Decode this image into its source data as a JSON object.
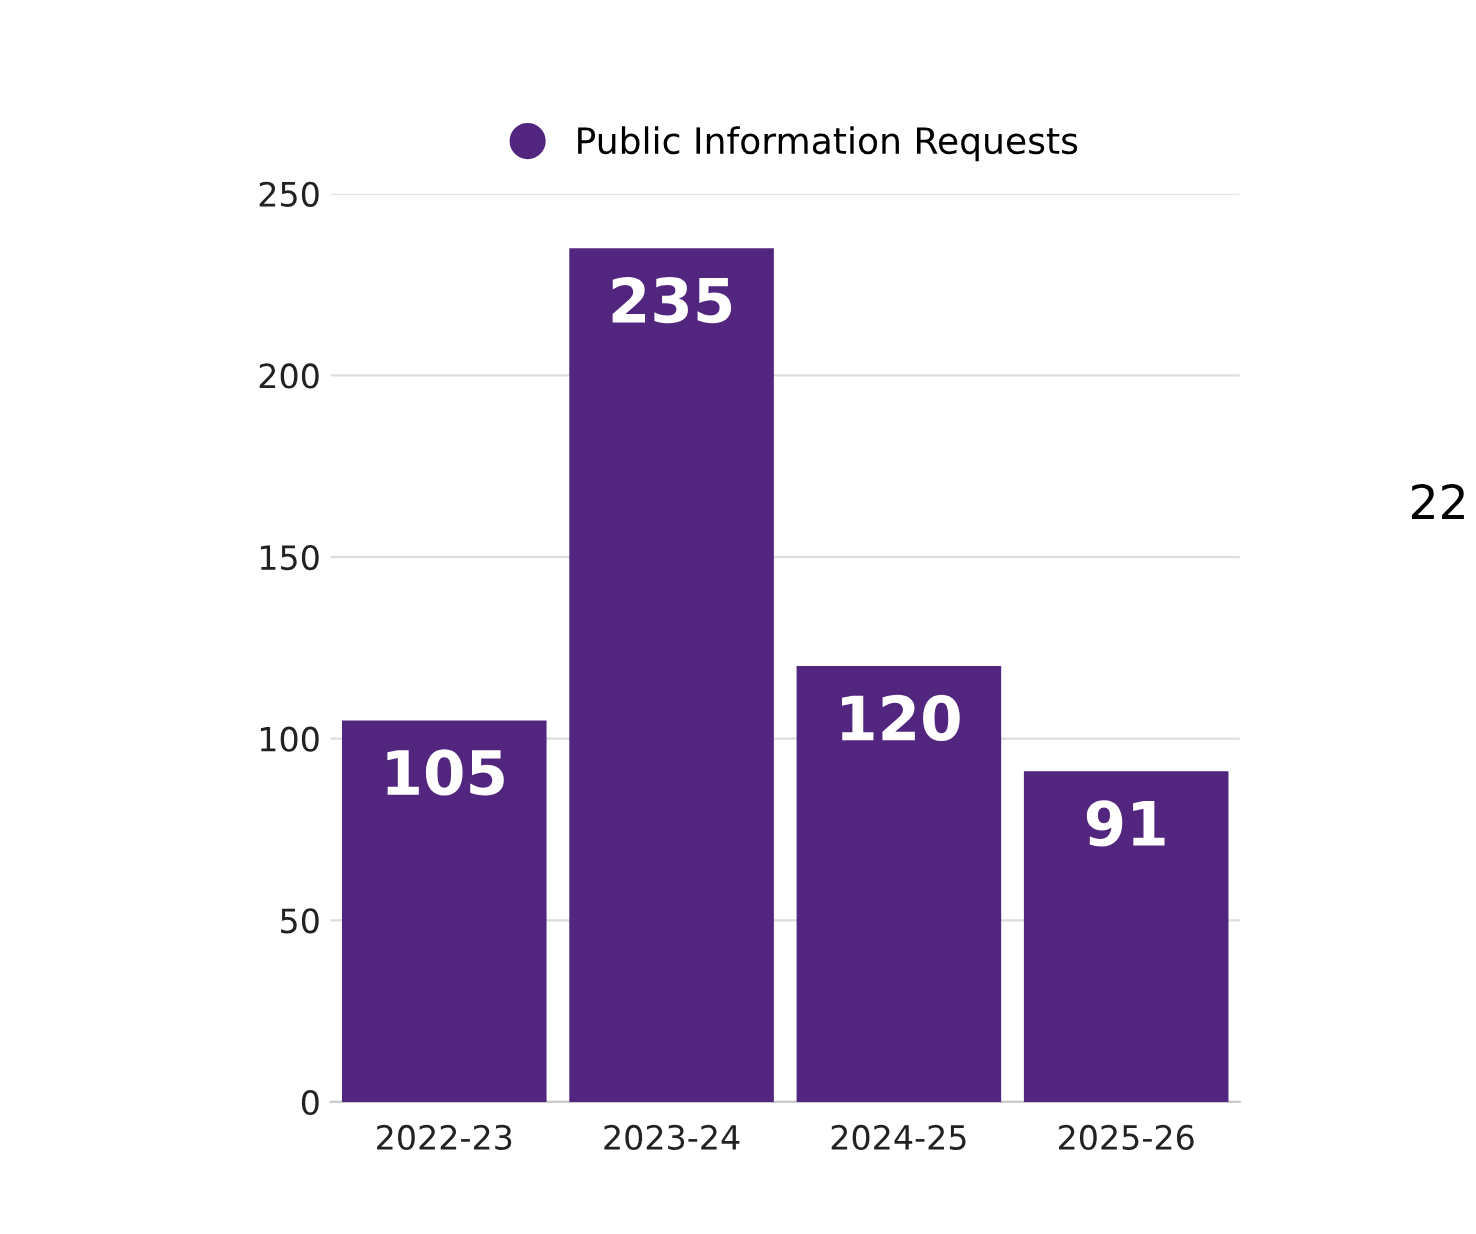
{
  "chart_data": {
    "type": "bar",
    "categories": [
      "2022-23",
      "2023-24",
      "2024-25",
      "2025-26"
    ],
    "series": [
      {
        "name": "Public Information Requests",
        "color": "#52267f",
        "values": [
          105,
          235,
          120,
          91
        ]
      }
    ],
    "ylim": [
      0,
      250
    ],
    "yticks": [
      0,
      50,
      100,
      150,
      200,
      250
    ],
    "grid": "y",
    "legend": "top",
    "data_labels": true,
    "annotations": [
      "22"
    ]
  }
}
